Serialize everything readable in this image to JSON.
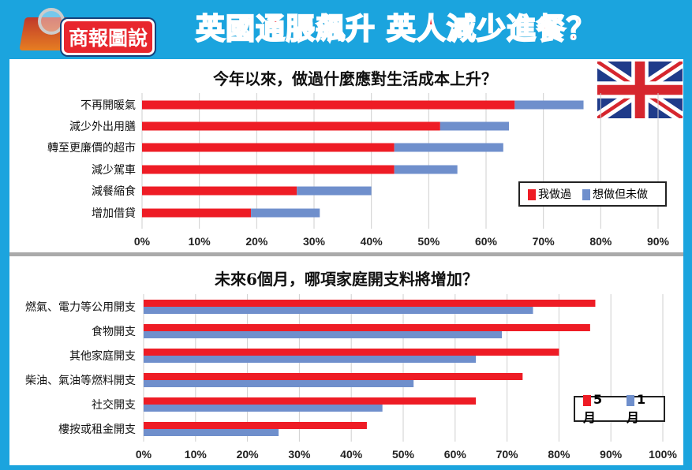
{
  "header": {
    "logo_text": "商報圖說",
    "headline": "英國通脹飆升 英人減少進餐？"
  },
  "colors": {
    "red": "#ee1c25",
    "blue": "#6f8fcc",
    "background": "#1ba4de"
  },
  "icons": {
    "flag": "union-jack-flag-icon"
  },
  "chart_data": [
    {
      "type": "bar",
      "orientation": "horizontal",
      "stacked": true,
      "title": "今年以來，做過什麼應對生活成本上升？",
      "categories": [
        "不再開暖氣",
        "減少外出用膳",
        "轉至更廉價的超市",
        "減少駕車",
        "減餐縮食",
        "增加借貸"
      ],
      "series": [
        {
          "name": "我做過",
          "values": [
            65,
            52,
            44,
            44,
            27,
            19
          ]
        },
        {
          "name": "想做但未做",
          "values": [
            12,
            12,
            19,
            11,
            13,
            12
          ]
        }
      ],
      "xlim": [
        0,
        90
      ],
      "xticks": [
        "0%",
        "10%",
        "20%",
        "30%",
        "40%",
        "50%",
        "60%",
        "70%",
        "80%",
        "90%"
      ],
      "grid": true,
      "legend": "bottom-right"
    },
    {
      "type": "bar",
      "orientation": "horizontal",
      "stacked": false,
      "title": "未來6個月，哪項家庭開支料將增加？",
      "categories": [
        "燃氣、電力等公用開支",
        "食物開支",
        "其他家庭開支",
        "柴油、氣油等燃料開支",
        "社交開支",
        "樓按或租金開支"
      ],
      "series": [
        {
          "name": "5月",
          "values": [
            87,
            86,
            80,
            73,
            64,
            43
          ]
        },
        {
          "name": "1月",
          "values": [
            75,
            69,
            64,
            52,
            46,
            26
          ]
        }
      ],
      "xlim": [
        0,
        100
      ],
      "xticks": [
        "0%",
        "10%",
        "20%",
        "30%",
        "40%",
        "50%",
        "60%",
        "70%",
        "80%",
        "90%",
        "100%"
      ],
      "grid": true,
      "legend": "bottom-right"
    }
  ]
}
